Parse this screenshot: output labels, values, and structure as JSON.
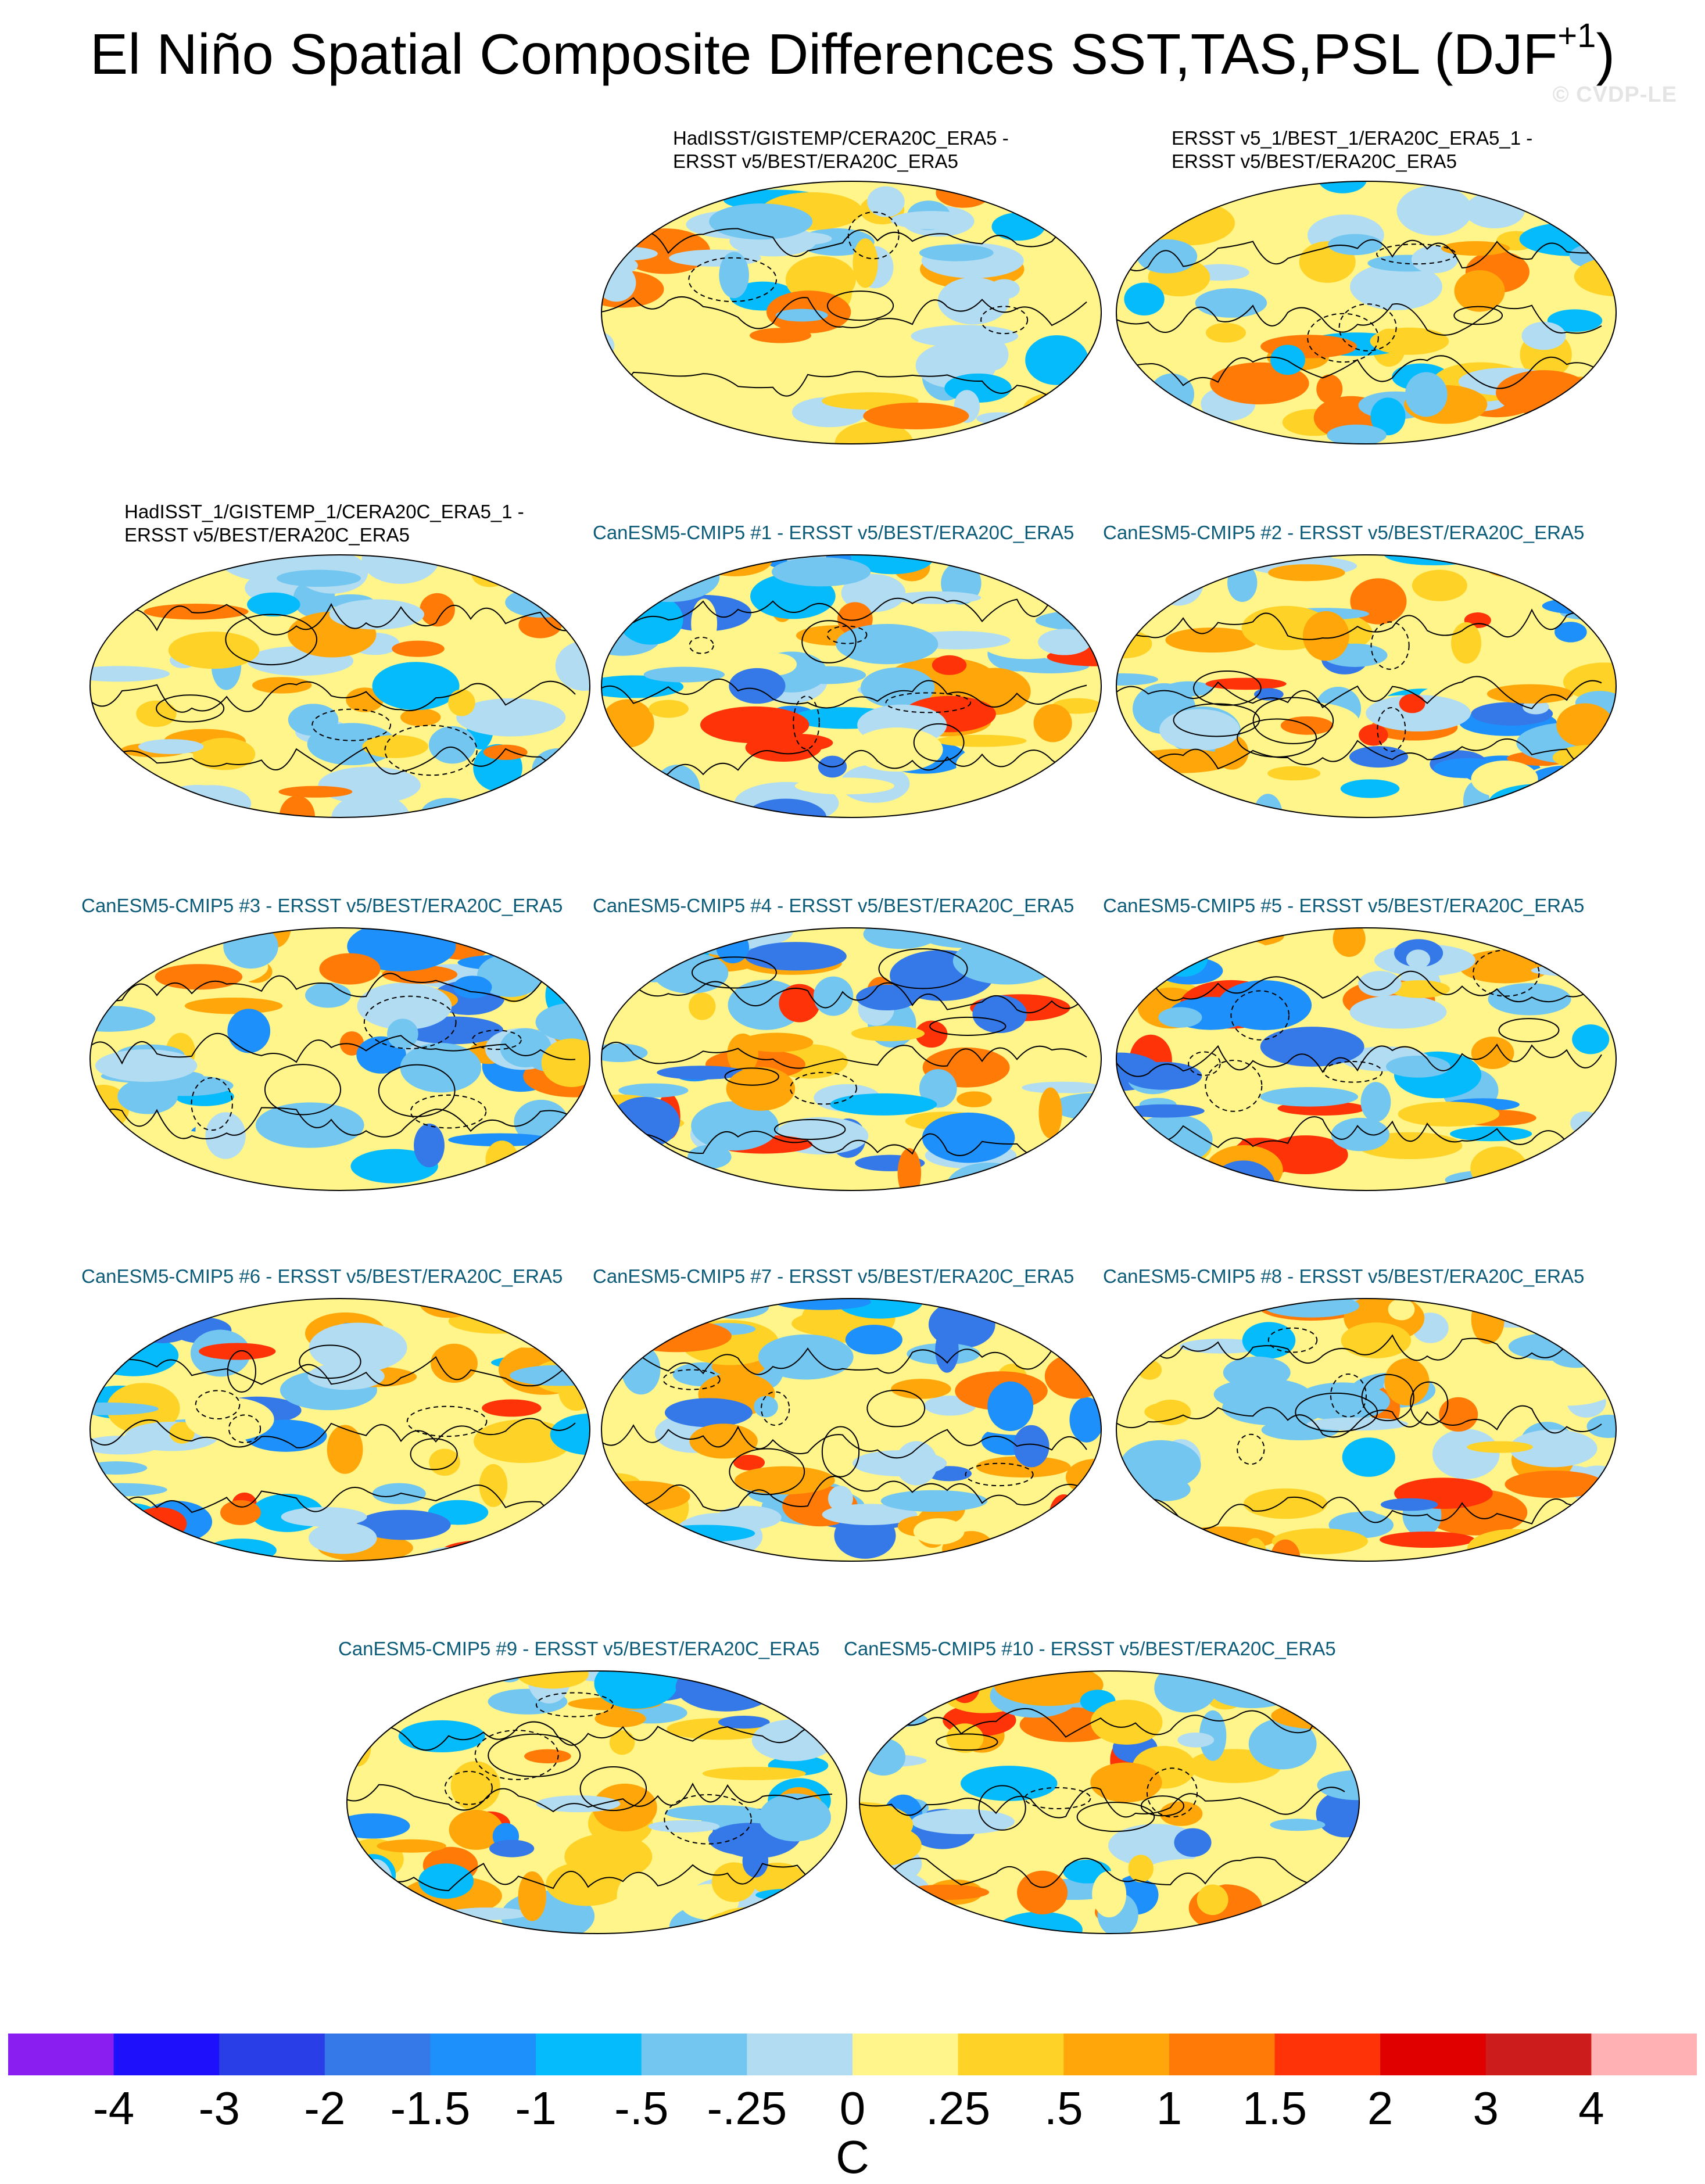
{
  "title": {
    "text": "El Niño Spatial Composite Differences SST,TAS,PSL (DJF",
    "superscript": "+1",
    "closing": ")"
  },
  "watermark": "© CVDP-LE",
  "panels": [
    {
      "lines": [
        "HadISST/GISTEMP/CERA20C_ERA5 -",
        "ERSST v5/BEST/ERA20C_ERA5"
      ],
      "style": "obs"
    },
    {
      "lines": [
        "ERSST v5_1/BEST_1/ERA20C_ERA5_1 -",
        "ERSST v5/BEST/ERA20C_ERA5"
      ],
      "style": "obs"
    },
    {
      "lines": [
        "HadISST_1/GISTEMP_1/CERA20C_ERA5_1 -",
        "ERSST v5/BEST/ERA20C_ERA5"
      ],
      "style": "obs"
    },
    {
      "lines": [
        "CanESM5-CMIP5 #1 - ERSST v5/BEST/ERA20C_ERA5"
      ],
      "style": "model"
    },
    {
      "lines": [
        "CanESM5-CMIP5 #2 - ERSST v5/BEST/ERA20C_ERA5"
      ],
      "style": "model"
    },
    {
      "lines": [
        "CanESM5-CMIP5 #3 - ERSST v5/BEST/ERA20C_ERA5"
      ],
      "style": "model"
    },
    {
      "lines": [
        "CanESM5-CMIP5 #4 - ERSST v5/BEST/ERA20C_ERA5"
      ],
      "style": "model"
    },
    {
      "lines": [
        "CanESM5-CMIP5 #5 - ERSST v5/BEST/ERA20C_ERA5"
      ],
      "style": "model"
    },
    {
      "lines": [
        "CanESM5-CMIP5 #6 - ERSST v5/BEST/ERA20C_ERA5"
      ],
      "style": "model"
    },
    {
      "lines": [
        "CanESM5-CMIP5 #7 - ERSST v5/BEST/ERA20C_ERA5"
      ],
      "style": "model"
    },
    {
      "lines": [
        "CanESM5-CMIP5 #8 - ERSST v5/BEST/ERA20C_ERA5"
      ],
      "style": "model"
    },
    {
      "lines": [
        "CanESM5-CMIP5 #9 - ERSST v5/BEST/ERA20C_ERA5"
      ],
      "style": "model"
    },
    {
      "lines": [
        "CanESM5-CMIP5 #10 - ERSST v5/BEST/ERA20C_ERA5"
      ],
      "style": "model"
    }
  ],
  "colorbar": {
    "colors": [
      "#8a1ef0",
      "#1e10fb",
      "#2a3ee8",
      "#3578e8",
      "#1e90fb",
      "#06bbfb",
      "#72c6f0",
      "#b1dcf2",
      "#fff58a",
      "#ffd227",
      "#ffa70a",
      "#ff7a06",
      "#ff3308",
      "#e00000",
      "#cc1c1c",
      "#ffb1b3"
    ],
    "labels": [
      "-4",
      "-3",
      "-2",
      "-1.5",
      "-1",
      "-.5",
      "-.25",
      "0",
      ".25",
      ".5",
      "1",
      "1.5",
      "2",
      "3",
      "4"
    ],
    "units": "C"
  },
  "map_colors": {
    "land_outline": "#ffffff",
    "coastline": "#000000",
    "ocean_base": "#b1dcf2",
    "warm": "#fff58a"
  }
}
